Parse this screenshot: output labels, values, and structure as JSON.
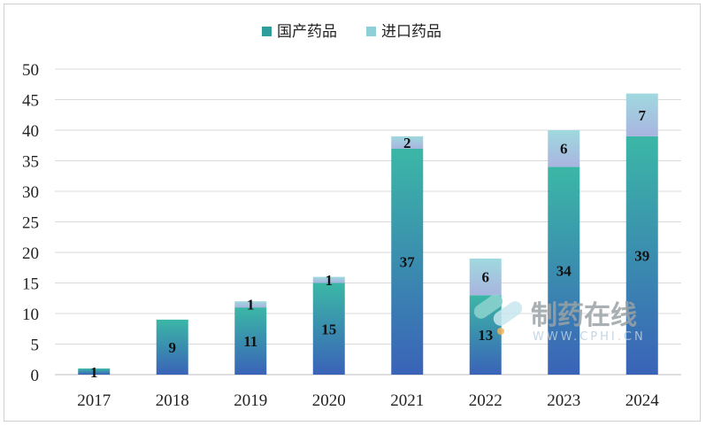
{
  "chart_data": {
    "type": "bar",
    "stacked": true,
    "categories": [
      "2017",
      "2018",
      "2019",
      "2020",
      "2021",
      "2022",
      "2023",
      "2024"
    ],
    "series": [
      {
        "name": "国产药品",
        "values": [
          1,
          9,
          11,
          15,
          37,
          13,
          34,
          39
        ],
        "color": "#2e9e9a"
      },
      {
        "name": "进口药品",
        "values": [
          0,
          0,
          1,
          1,
          2,
          6,
          6,
          7
        ],
        "color": "#8ecfd8"
      }
    ],
    "ylim": [
      0,
      50
    ],
    "yticks": [
      0,
      5,
      10,
      15,
      20,
      25,
      30,
      35,
      40,
      45,
      50
    ],
    "grid": true,
    "legend": "top-center",
    "title": "",
    "xlabel": "",
    "ylabel": ""
  },
  "watermark": {
    "text": "制药在线",
    "subtext": "WWW.CPHI.CN"
  }
}
